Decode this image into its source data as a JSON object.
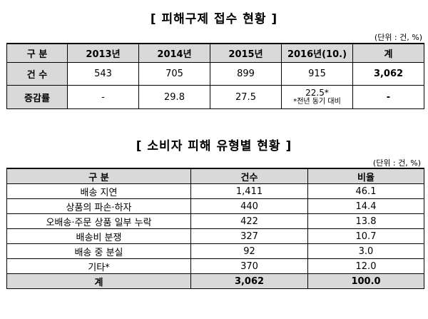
{
  "table1": {
    "title": "[ 피해구제 접수 현황 ]",
    "unit": "(단위 : 건, %)",
    "headers": [
      "구  분",
      "2013년",
      "2014년",
      "2015년",
      "2016년(10.)",
      "계"
    ],
    "rows": [
      {
        "label": "건  수",
        "values": [
          "543",
          "705",
          "899",
          "915",
          "3,062"
        ]
      },
      {
        "label": "증감률",
        "values": [
          "-",
          "29.8",
          "27.5",
          "22.5*",
          "-"
        ],
        "note": "*전년 동기 대비"
      }
    ]
  },
  "table2": {
    "title": "[ 소비자 피해 유형별 현황 ]",
    "unit": "(단위 : 건, %)",
    "headers": [
      "구  분",
      "건수",
      "비율"
    ],
    "rows": [
      {
        "label": "배송 지연",
        "count": "1,411",
        "ratio": "46.1"
      },
      {
        "label": "상품의 파손·하자",
        "count": "440",
        "ratio": "14.4"
      },
      {
        "label": "오배송·주문 상품 일부 누락",
        "count": "422",
        "ratio": "13.8"
      },
      {
        "label": "배송비 분쟁",
        "count": "327",
        "ratio": "10.7"
      },
      {
        "label": "배송 중 분실",
        "count": "92",
        "ratio": "3.0"
      },
      {
        "label": "기타*",
        "count": "370",
        "ratio": "12.0"
      }
    ],
    "total": {
      "label": "계",
      "count": "3,062",
      "ratio": "100.0"
    }
  }
}
